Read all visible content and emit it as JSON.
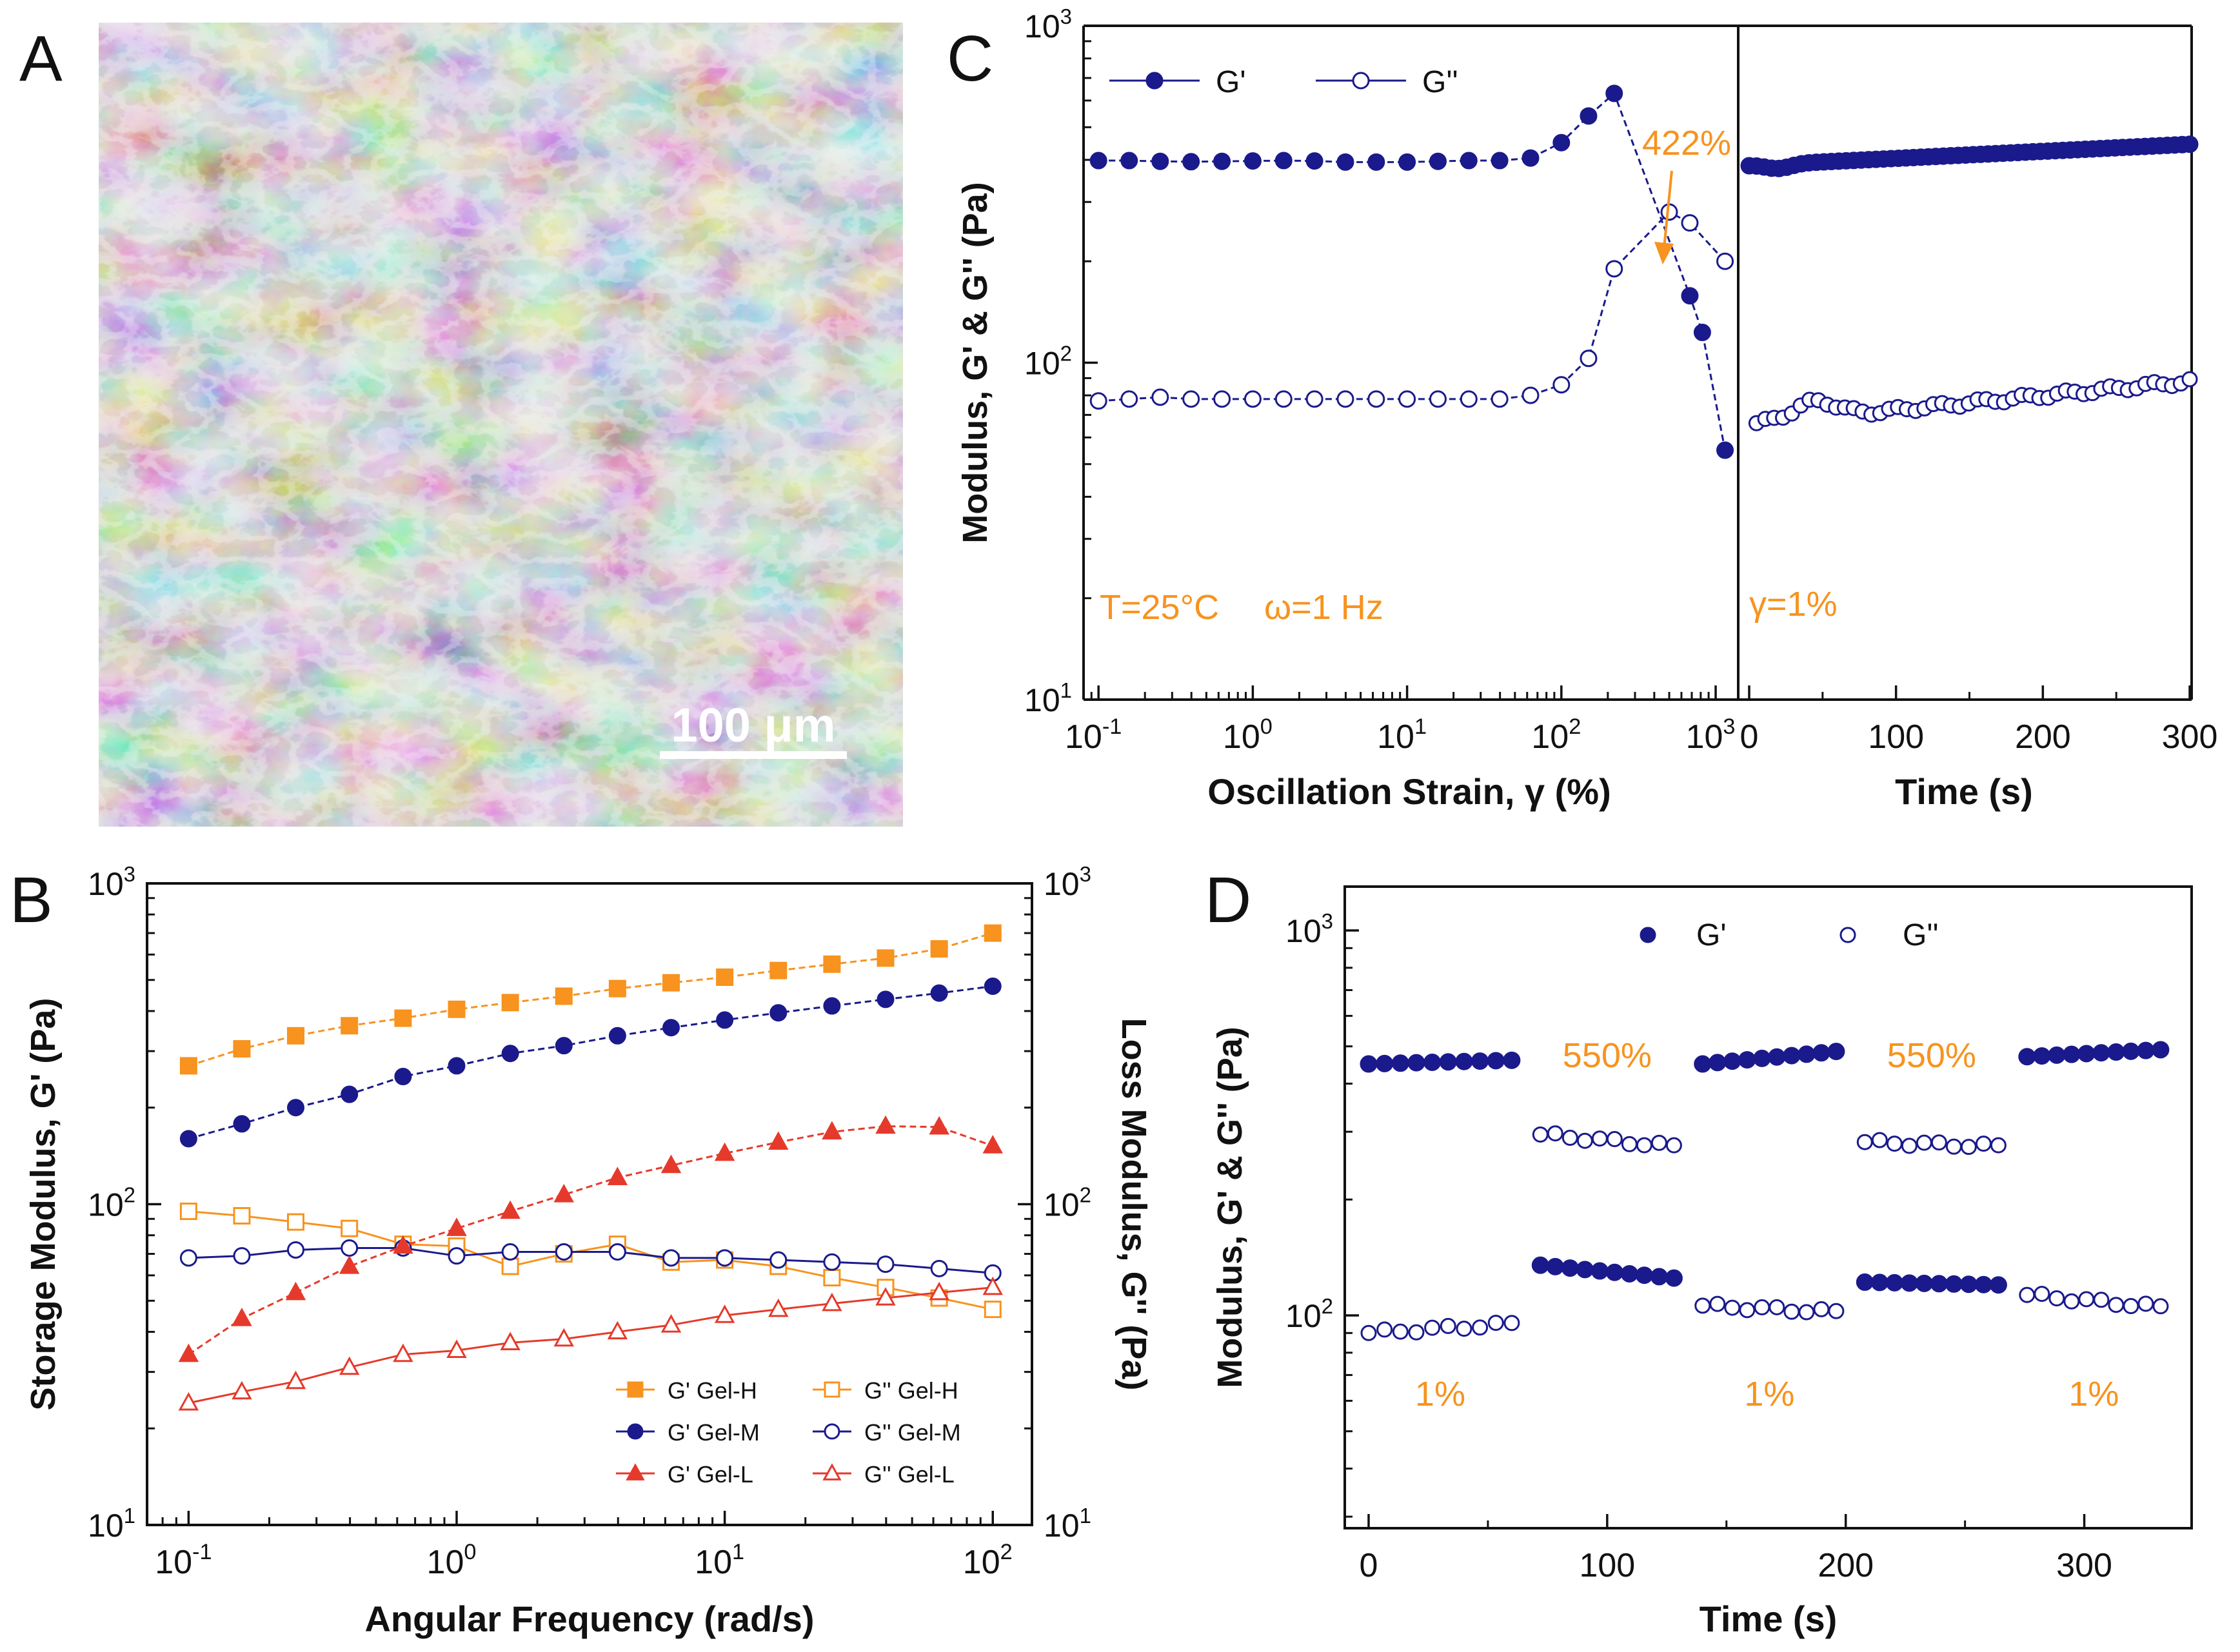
{
  "panel_labels": {
    "a": "A",
    "b": "B",
    "c": "C",
    "d": "D"
  },
  "panel_a": {
    "scale_text": "100 μm",
    "scale_value": 100,
    "scale_unit": "μm"
  },
  "chart_data": [
    {
      "id": "B",
      "type": "line",
      "log_x": true,
      "log_y": true,
      "xlabel": "Angular Frequency (rad/s)",
      "ylabel": "Storage Modulus, G' (Pa)",
      "ylabel_right": "Loss Modulus, G'' (Pa)",
      "xlim": [
        0.07,
        140
      ],
      "ylim": [
        10,
        1000
      ],
      "x_ticks": [
        {
          "v": 0.1,
          "label": "10",
          "exp": "-1"
        },
        {
          "v": 1,
          "label": "10",
          "exp": "0"
        },
        {
          "v": 10,
          "label": "10",
          "exp": "1"
        },
        {
          "v": 100,
          "label": "10",
          "exp": "2"
        }
      ],
      "y_ticks": [
        {
          "v": 10,
          "label": "10",
          "exp": "1"
        },
        {
          "v": 100,
          "label": "10",
          "exp": "2"
        },
        {
          "v": 1000,
          "label": "10",
          "exp": "3"
        }
      ],
      "x": [
        0.1,
        0.158,
        0.251,
        0.398,
        0.631,
        1,
        1.585,
        2.512,
        3.981,
        6.31,
        10,
        15.85,
        25.12,
        39.81,
        63.1,
        100
      ],
      "legend_position": "bottom-right",
      "series": [
        {
          "name": "G' Gel-H",
          "color": "#f7931e",
          "marker": "square",
          "filled": true,
          "values": [
            270,
            305,
            335,
            360,
            380,
            405,
            425,
            445,
            470,
            490,
            510,
            535,
            560,
            585,
            625,
            700
          ]
        },
        {
          "name": "G'' Gel-H",
          "color": "#f7931e",
          "marker": "square",
          "filled": false,
          "values": [
            95,
            92,
            88,
            84,
            75,
            74,
            64,
            70,
            75,
            66,
            67,
            64,
            59,
            55,
            51,
            47
          ]
        },
        {
          "name": "G' Gel-M",
          "color": "#1a1a8c",
          "marker": "circle",
          "filled": true,
          "values": [
            160,
            178,
            200,
            220,
            250,
            270,
            295,
            312,
            335,
            355,
            375,
            395,
            415,
            435,
            455,
            478
          ]
        },
        {
          "name": "G'' Gel-M",
          "color": "#1a1a8c",
          "marker": "circle",
          "filled": false,
          "values": [
            68,
            69,
            72,
            73,
            73,
            69,
            71,
            71,
            71,
            68,
            68,
            67,
            66,
            65,
            63,
            61
          ]
        },
        {
          "name": "G' Gel-L",
          "color": "#e53a2b",
          "marker": "triangle",
          "filled": true,
          "values": [
            34,
            44,
            53,
            64,
            74,
            84,
            95,
            107,
            121,
            132,
            144,
            156,
            168,
            175,
            174,
            152
          ]
        },
        {
          "name": "G'' Gel-L",
          "color": "#e53a2b",
          "marker": "triangle",
          "filled": false,
          "values": [
            24,
            26,
            28,
            31,
            34,
            35,
            37,
            38,
            40,
            42,
            45,
            47,
            49,
            51,
            53,
            55
          ]
        }
      ]
    },
    {
      "id": "C-strain",
      "type": "line",
      "log_x": true,
      "log_y": true,
      "xlabel": "Oscillation Strain, γ (%)",
      "ylabel": "Modulus, G' & G'' (Pa)",
      "xlim": [
        0.08,
        1400
      ],
      "ylim": [
        10,
        1000
      ],
      "x_ticks": [
        {
          "v": 0.1,
          "label": "10",
          "exp": "-1"
        },
        {
          "v": 1,
          "label": "10",
          "exp": "0"
        },
        {
          "v": 10,
          "label": "10",
          "exp": "1"
        },
        {
          "v": 100,
          "label": "10",
          "exp": "2"
        },
        {
          "v": 1000,
          "label": "10",
          "exp": "3"
        }
      ],
      "y_ticks": [
        {
          "v": 10,
          "label": "10",
          "exp": "1"
        },
        {
          "v": 100,
          "label": "10",
          "exp": "2"
        },
        {
          "v": 1000,
          "label": "10",
          "exp": "3"
        }
      ],
      "x": [
        0.1,
        0.158,
        0.251,
        0.398,
        0.631,
        1,
        1.585,
        2.512,
        3.981,
        6.31,
        10,
        15.85,
        25.12,
        39.81,
        63.1,
        100,
        150,
        220,
        500,
        680,
        1150
      ],
      "legend_position": "top-left",
      "series": [
        {
          "name": "G'",
          "color": "#1a1a8c",
          "marker": "circle",
          "filled": true,
          "values": [
            398,
            398,
            396,
            395,
            396,
            397,
            398,
            397,
            394,
            394,
            394,
            396,
            398,
            398,
            405,
            450,
            540,
            630,
            null,
            null,
            55
          ]
        },
        {
          "name": "G''",
          "color": "#1a1a8c",
          "marker": "circle",
          "filled": false,
          "values": [
            77,
            78,
            79,
            78,
            78,
            78,
            78,
            78,
            78,
            78,
            78,
            78,
            78,
            78,
            80,
            86,
            103,
            190,
            280,
            260,
            200
          ]
        }
      ],
      "extra_gp_points": [
        {
          "x": 680,
          "y": 158
        },
        {
          "x": 820,
          "y": 123
        }
      ],
      "annotations": [
        "422%",
        "T=25°C",
        "ω=1 Hz"
      ],
      "annotation_arrow_value": 422
    },
    {
      "id": "C-time",
      "type": "scatter",
      "xlabel": "Time (s)",
      "xlim": [
        0,
        300
      ],
      "ylim": [
        10,
        1000
      ],
      "x_ticks": [
        0,
        100,
        200,
        300
      ],
      "annotation": "γ=1%",
      "series": [
        {
          "name": "G'",
          "color": "#1a1a8c",
          "marker": "circle",
          "filled": true,
          "start": 385,
          "end": 445
        },
        {
          "name": "G''",
          "color": "#1a1a8c",
          "marker": "circle",
          "filled": false,
          "start": 66,
          "end": 88
        }
      ]
    },
    {
      "id": "D",
      "type": "scatter",
      "xlabel": "Time (s)",
      "ylabel": "Modulus, G' & G'' (Pa)",
      "xlim": [
        -10,
        345
      ],
      "ylim": [
        28,
        1300
      ],
      "x_ticks": [
        0,
        100,
        200,
        300
      ],
      "y_ticks": [
        {
          "v": 100,
          "label": "10",
          "exp": "2"
        },
        {
          "v": 1000,
          "label": "10",
          "exp": "3"
        }
      ],
      "legend_position": "top-center",
      "series": [
        {
          "name": "G'",
          "color": "#1a1a8c",
          "marker": "circle",
          "filled": true
        },
        {
          "name": "G''",
          "color": "#1a1a8c",
          "marker": "circle",
          "filled": false
        }
      ],
      "segments": [
        {
          "strain_label": "1%",
          "t": [
            0,
            60
          ],
          "g1": [
            450,
            460
          ],
          "g2": [
            90,
            95
          ]
        },
        {
          "strain_label": "550%",
          "t": [
            72,
            128
          ],
          "g1": [
            135,
            125
          ],
          "g2": [
            295,
            275
          ]
        },
        {
          "strain_label": "1%",
          "t": [
            140,
            196
          ],
          "g1": [
            450,
            485
          ],
          "g2": [
            106,
            102
          ]
        },
        {
          "strain_label": "550%",
          "t": [
            208,
            264
          ],
          "g1": [
            122,
            120
          ],
          "g2": [
            282,
            275
          ]
        },
        {
          "strain_label": "1%",
          "t": [
            276,
            332
          ],
          "g1": [
            470,
            490
          ],
          "g2": [
            113,
            105
          ]
        }
      ]
    }
  ]
}
